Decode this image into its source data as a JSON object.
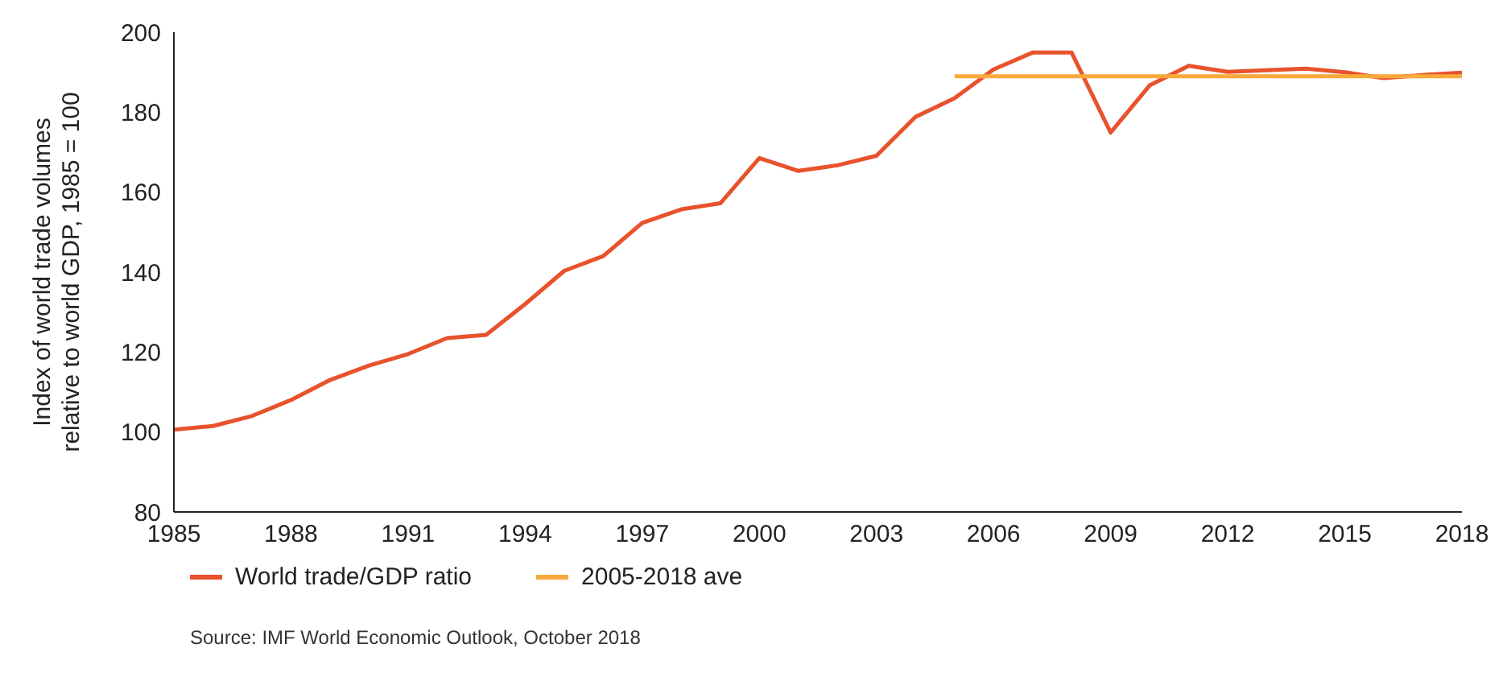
{
  "chart_data": {
    "type": "line",
    "ylabel": "Index of world trade volumes relative to world GDP, 1985 = 100",
    "x": [
      1985,
      1986,
      1987,
      1988,
      1989,
      1990,
      1991,
      1992,
      1993,
      1994,
      1995,
      1996,
      1997,
      1998,
      1999,
      2000,
      2001,
      2002,
      2003,
      2004,
      2005,
      2006,
      2007,
      2008,
      2009,
      2010,
      2011,
      2012,
      2013,
      2014,
      2015,
      2016,
      2017,
      2018
    ],
    "series": [
      {
        "name": "World trade/GDP ratio",
        "color": "#e8522c",
        "values": [
          100.6,
          101.5,
          104,
          108,
          113,
          116.6,
          119.5,
          123.5,
          124.3,
          132,
          140.3,
          144,
          152.3,
          155.7,
          157.2,
          168.5,
          165.3,
          166.7,
          169.1,
          178.8,
          183.5,
          190.7,
          194.9,
          194.9,
          174.9,
          186.7,
          191.6,
          190.1,
          190.5,
          190.9,
          190,
          188.5,
          189.3,
          189.9
        ]
      },
      {
        "name": "2005-2018 ave",
        "color": "#f9a93b",
        "x": [
          2005,
          2018
        ],
        "values": [
          189,
          189
        ]
      }
    ],
    "xlim": [
      1985,
      2018
    ],
    "xticks": [
      1985,
      1988,
      1991,
      1994,
      1997,
      2000,
      2003,
      2006,
      2009,
      2012,
      2015,
      2018
    ],
    "ylim": [
      80,
      200
    ],
    "yticks": [
      80,
      100,
      120,
      140,
      160,
      180,
      200
    ],
    "grid": false,
    "legend": "bottom",
    "marker": "none",
    "line_style": "solid",
    "annotations": [
      "Source: IMF World Economic Outlook, October 2018"
    ]
  }
}
